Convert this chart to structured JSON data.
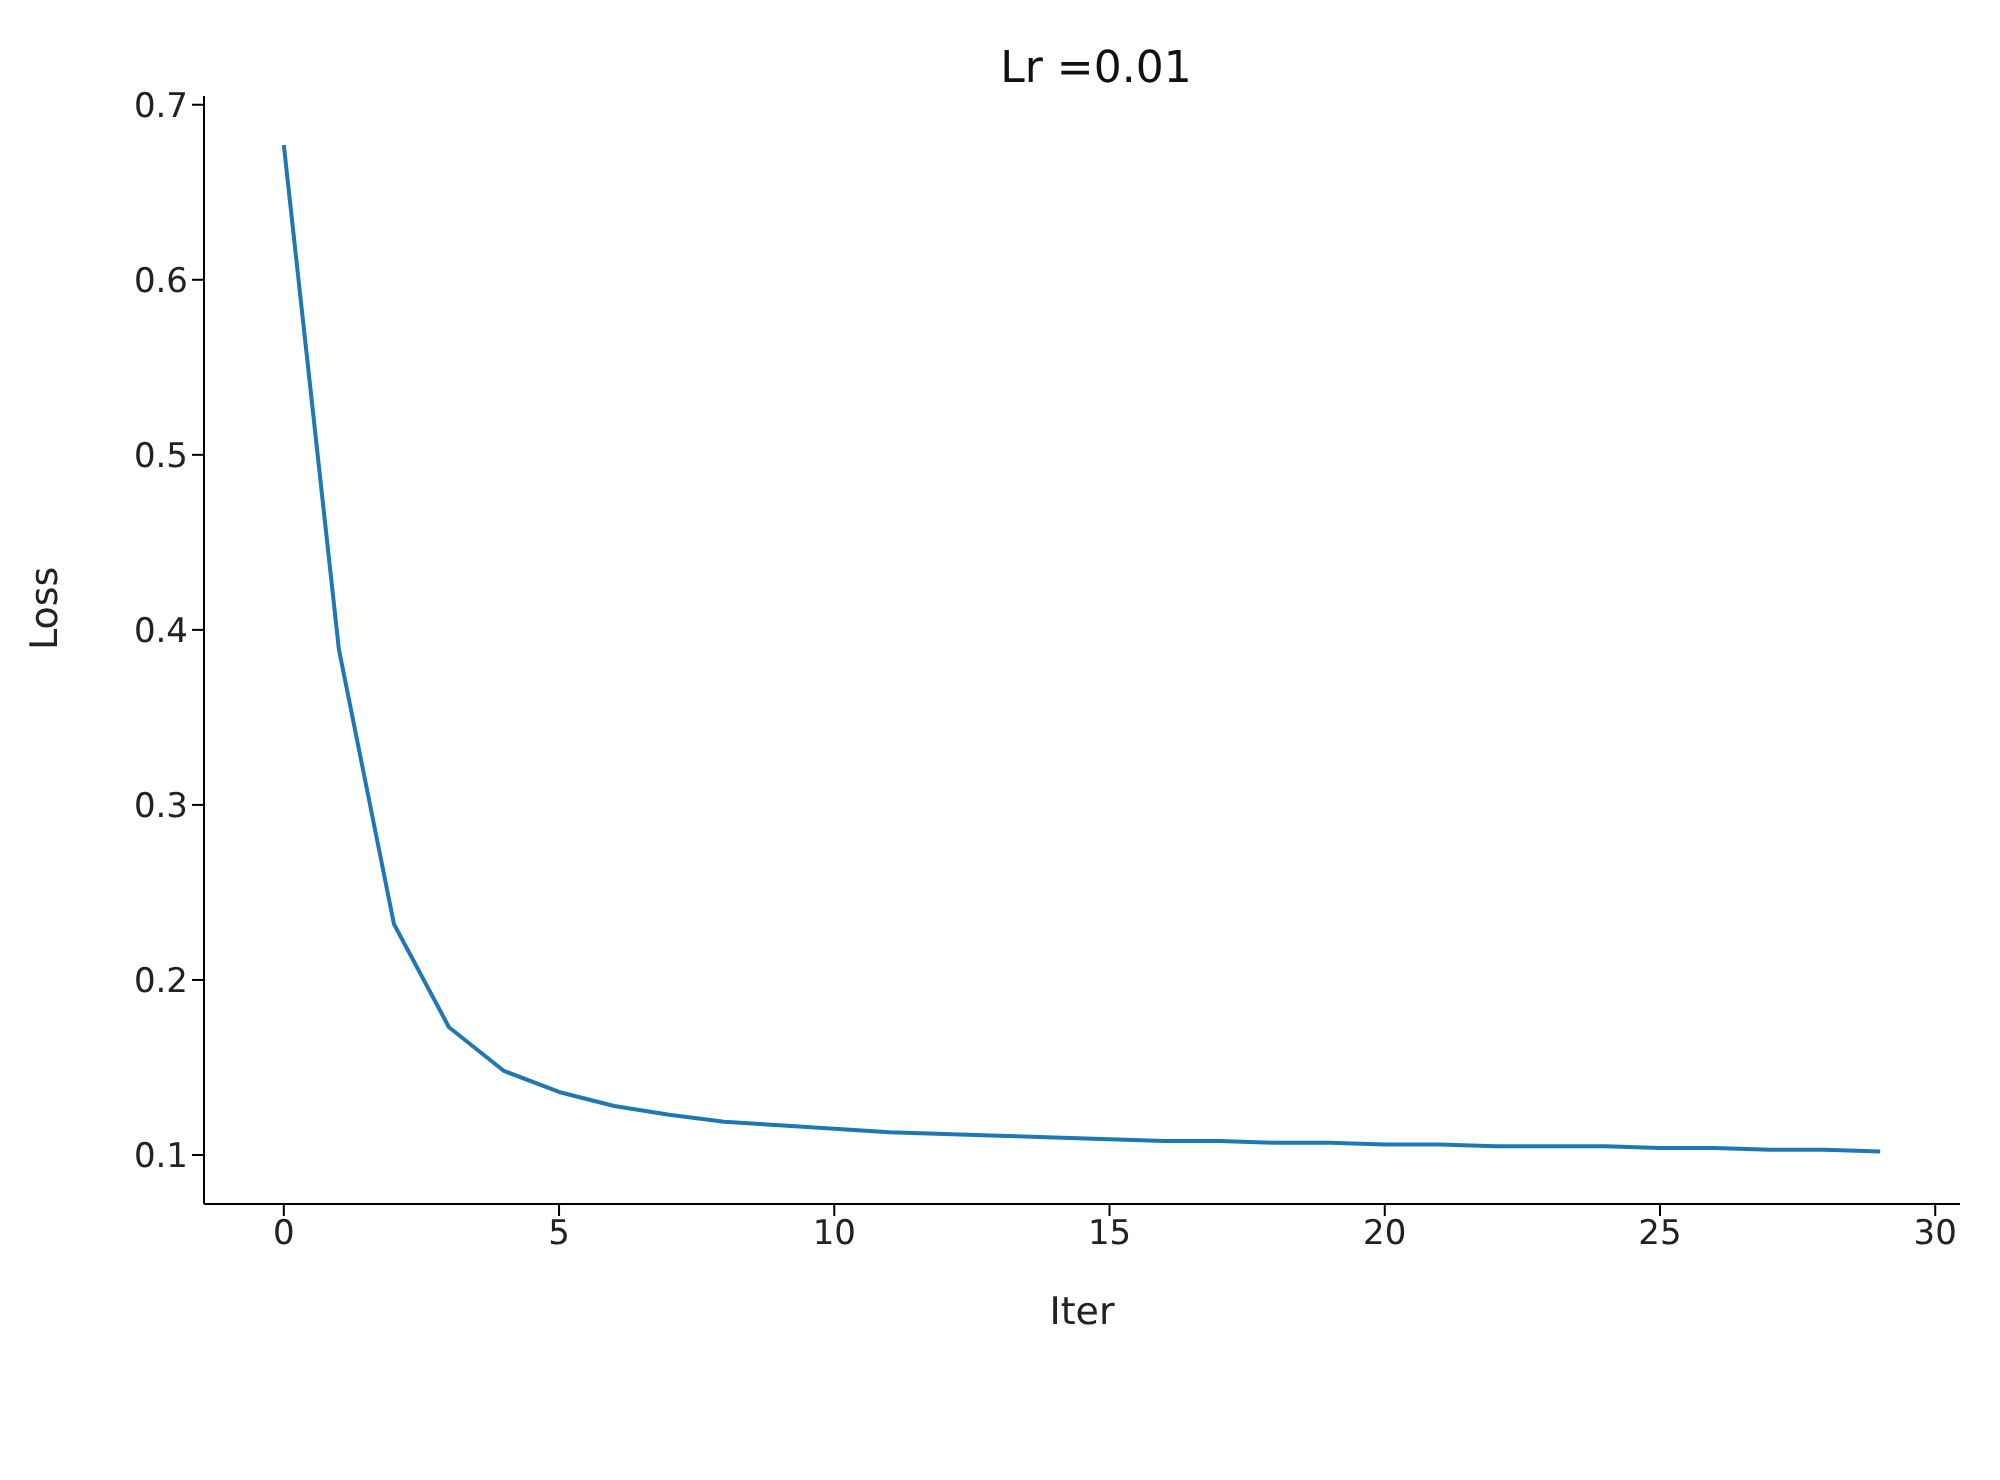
{
  "chart_data": {
    "type": "line",
    "title": "Lr =0.01",
    "xlabel": "Iter",
    "ylabel": "Loss",
    "x": [
      0,
      1,
      2,
      3,
      4,
      5,
      6,
      7,
      8,
      9,
      10,
      11,
      12,
      13,
      14,
      15,
      16,
      17,
      18,
      19,
      20,
      21,
      22,
      23,
      24,
      25,
      26,
      27,
      28,
      29
    ],
    "series": [
      {
        "color": "#1f77b4",
        "values": [
          0.677,
          0.389,
          0.232,
          0.173,
          0.148,
          0.136,
          0.128,
          0.123,
          0.119,
          0.117,
          0.115,
          0.113,
          0.112,
          0.111,
          0.11,
          0.109,
          0.108,
          0.108,
          0.107,
          0.107,
          0.106,
          0.106,
          0.105,
          0.105,
          0.105,
          0.104,
          0.104,
          0.103,
          0.103,
          0.102
        ]
      }
    ],
    "xlim": [
      -1.45,
      30.45
    ],
    "ylim": [
      0.072,
      0.705
    ],
    "xticks": [
      0,
      5,
      10,
      15,
      20,
      25,
      30
    ],
    "yticks": [
      0.1,
      0.2,
      0.3,
      0.4,
      0.5,
      0.6,
      0.7
    ],
    "grid": false,
    "legend": false,
    "marker": "none",
    "line_style": "solid"
  }
}
